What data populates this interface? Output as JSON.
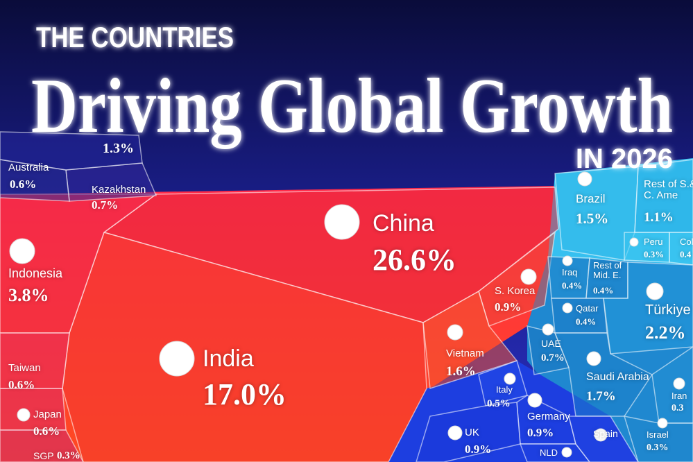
{
  "chart_data": {
    "type": "voronoi",
    "title_top": "THE COUNTRIES",
    "title": "Driving Global Growth",
    "subtitle": "IN 2026",
    "categories": [
      "China",
      "India",
      "Indonesia",
      "Kazakhstan",
      "Australia",
      null,
      "S. Korea",
      "Vietnam",
      "Taiwan",
      "Japan",
      "SGP",
      "Brazil",
      "Rest of S.& C. Ame",
      "Peru",
      "Col",
      "Iraq",
      "Rest of Mid. E.",
      "Qatar",
      "Türkiye",
      "UAE",
      "Saudi Arabia",
      "Iran",
      "Israel",
      "Italy",
      "Germany",
      "UK",
      "NLD",
      "Spain"
    ],
    "values": [
      26.6,
      17.0,
      3.8,
      0.7,
      0.6,
      1.3,
      0.9,
      1.6,
      0.6,
      0.6,
      0.3,
      1.5,
      1.1,
      0.3,
      0.4,
      0.4,
      0.4,
      0.4,
      2.2,
      0.7,
      1.7,
      0.3,
      0.3,
      0.5,
      0.9,
      0.9,
      null,
      null
    ],
    "value_labels": [
      "26.6%",
      "17.0%",
      "3.8%",
      "0.7%",
      "0.6%",
      "1.3%",
      "0.9%",
      "1.6%",
      "0.6%",
      "0.6%",
      "0.3%",
      "1.5%",
      "1.1%",
      "0.3%",
      "0.4",
      "0.4%",
      "0.4%",
      "0.4%",
      "2.2%",
      "0.7%",
      "1.7%",
      "0.3",
      "0.3%",
      "0.5%",
      "0.9%",
      "0.9%",
      null,
      null
    ],
    "colors": [
      "#e8283c",
      "#f23a30",
      "#ec2a48",
      "#33289a",
      "#2a2c98",
      "#24279a",
      "#ef4638",
      "#f25432",
      "#e42a5c",
      "#dc2a64",
      "#cc2870",
      "#33b8ea",
      "#2aaee6",
      "#3cc4f0",
      "#3cc4f0",
      "#2290d2",
      "#1f86cc",
      "#1c7cc6",
      "#2399da",
      "#1a74c0",
      "#1c80c8",
      "#2390d4",
      "#1f86cc",
      "#2248e8",
      "#1d3ee0",
      "#1a36d8",
      "#1e40e0",
      "#2044e2"
    ]
  }
}
